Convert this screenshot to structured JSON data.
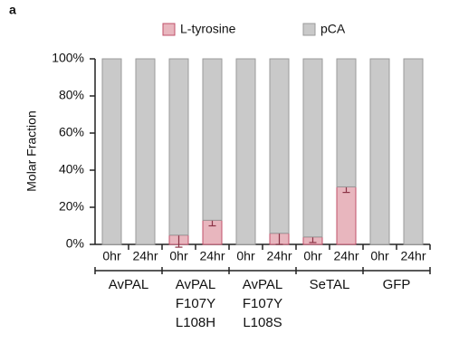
{
  "chart_data": {
    "type": "stacked_bar",
    "panel_label": "a",
    "ylabel": "Molar Fraction",
    "categories": [
      "0hr",
      "24hr",
      "0hr",
      "24hr",
      "0hr",
      "24hr",
      "0hr",
      "24hr",
      "0hr",
      "24hr"
    ],
    "groups": [
      [
        "AvPAL"
      ],
      [
        "AvPAL",
        "F107Y",
        "L108H"
      ],
      [
        "AvPAL",
        "F107Y",
        "L108S"
      ],
      [
        "SeTAL"
      ],
      [
        "GFP"
      ]
    ],
    "series": [
      {
        "name": "L-tyrosine",
        "color": "#e8b6be",
        "edge": "#c0506a",
        "values": [
          0,
          0,
          5,
          13,
          0,
          6,
          4,
          31,
          0,
          0
        ],
        "errors": [
          null,
          null,
          6.5,
          3,
          null,
          6,
          3,
          3,
          null,
          null
        ]
      },
      {
        "name": "pCA",
        "color": "#c9c9c9",
        "edge": "#9a9a9a",
        "values": [
          100,
          100,
          95,
          87,
          100,
          94,
          96,
          69,
          100,
          100
        ]
      }
    ],
    "ylim": [
      0,
      100
    ],
    "yticks": [
      {
        "value": 0,
        "label": "0%"
      },
      {
        "value": 20,
        "label": "20%"
      },
      {
        "value": 40,
        "label": "40%"
      },
      {
        "value": 60,
        "label": "60%"
      },
      {
        "value": 80,
        "label": "80%"
      },
      {
        "value": 100,
        "label": "100%"
      }
    ]
  }
}
